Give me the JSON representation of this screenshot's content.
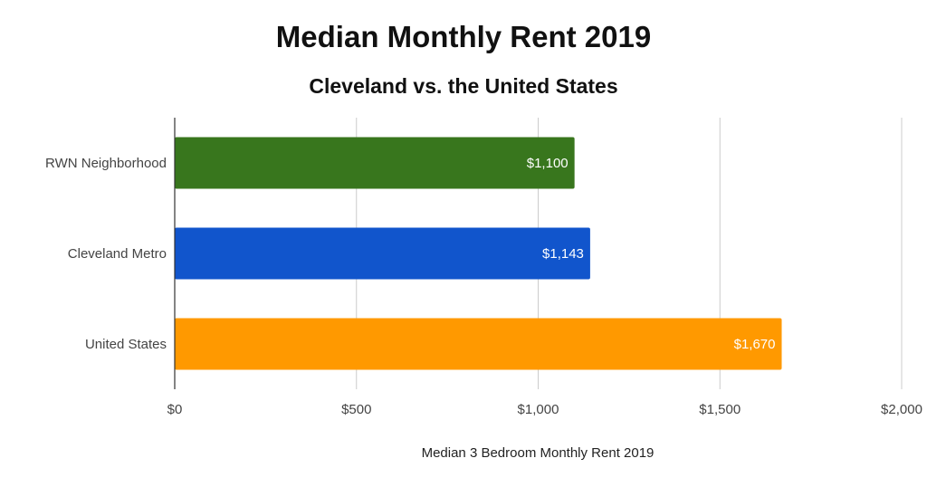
{
  "chart_data": {
    "type": "bar",
    "orientation": "horizontal",
    "title": "Median Monthly Rent 2019",
    "subtitle": "Cleveland vs. the United States",
    "categories": [
      "RWN Neighborhood",
      "Cleveland Metro",
      "United States"
    ],
    "values": [
      1100,
      1143,
      1670
    ],
    "data_labels": [
      "$1,100",
      "$1,143",
      "$1,670"
    ],
    "colors": [
      "#38761d",
      "#1155cc",
      "#ff9900"
    ],
    "xlabel": "Median 3 Bedroom Monthly Rent 2019",
    "ylabel": "",
    "xlim": [
      0,
      2000
    ],
    "ticks": [
      0,
      500,
      1000,
      1500,
      2000
    ],
    "tick_labels": [
      "$0",
      "$500",
      "$1,000",
      "$1,500",
      "$2,000"
    ],
    "grid": true,
    "legend": "none"
  }
}
